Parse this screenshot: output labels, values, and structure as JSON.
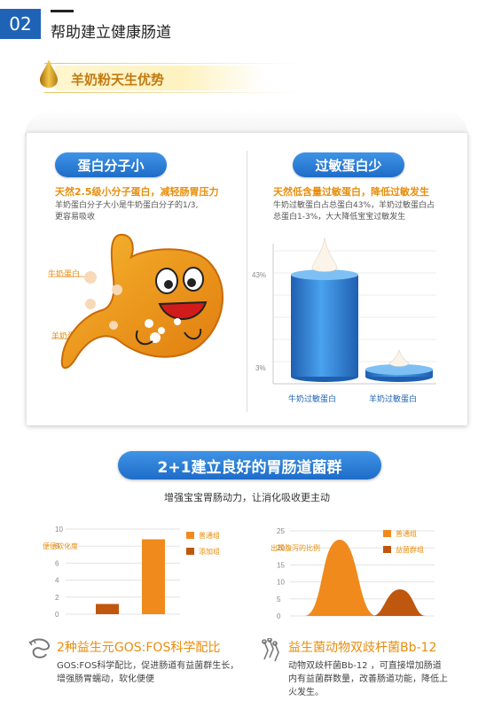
{
  "header": {
    "number": "02",
    "title": "帮助建立健康肠道"
  },
  "section": {
    "title": "羊奶粉天生优势"
  },
  "left_panel": {
    "pill": "蛋白分子小",
    "subtitle": "天然2.5级小分子蛋白，减轻肠胃压力",
    "desc": [
      "羊奶蛋白分子大小是牛奶蛋白分子的1/3,",
      "更容易吸收"
    ],
    "label_cow": "牛奶蛋白",
    "label_goat": "羊奶蛋白"
  },
  "right_panel": {
    "pill": "过敏蛋白少",
    "subtitle": "天然低含量过敏蛋白，降低过敏发生",
    "desc": [
      "牛奶过敏蛋白占总蛋白43%，羊奶过敏蛋白占",
      "总蛋白1-3%，大大降低宝宝过敏发生"
    ]
  },
  "bottom": {
    "pill": "2+1建立良好的胃肠道菌群",
    "subtitle": "增强宝宝胃肠动力，让消化吸收更主动"
  },
  "left_footer": {
    "title": "2种益生元GOS:FOS科学配比",
    "desc": [
      "GOS:FOS科学配比，促进肠道有益菌群生长，",
      "增强肠胃蠕动，软化便便"
    ]
  },
  "right_footer": {
    "title": "益生菌动物双歧杆菌Bb-12",
    "desc": [
      "动物双歧杆菌Bb-12 ，可直接增加肠道",
      "内有益菌群数量，改善肠道功能，降低上",
      "火发生。"
    ]
  },
  "colors": {
    "blue": "#1f63b6",
    "orange": "#e98d0c",
    "brown": "#c0570e"
  },
  "chart_data": [
    {
      "type": "bar",
      "categories": [
        "牛奶过敏蛋白",
        "羊奶过敏蛋白"
      ],
      "values": [
        43,
        3
      ],
      "ytick_labels": [
        "43%",
        "3%"
      ]
    },
    {
      "type": "bar",
      "ylabel": "便便软化度",
      "yticks": [
        0,
        2,
        4,
        6,
        8,
        10
      ],
      "series": [
        {
          "name": "普通组",
          "values": [
            8.8
          ]
        },
        {
          "name": "添加组",
          "values": [
            1.2
          ]
        }
      ]
    },
    {
      "type": "area",
      "ylabel": "出现腹泻的比例",
      "yticks": [
        0,
        5,
        10,
        15,
        20,
        25
      ],
      "series": [
        {
          "name": "普通组",
          "peak": 21.5
        },
        {
          "name": "益菌群组",
          "peak": 7.5
        }
      ]
    }
  ]
}
